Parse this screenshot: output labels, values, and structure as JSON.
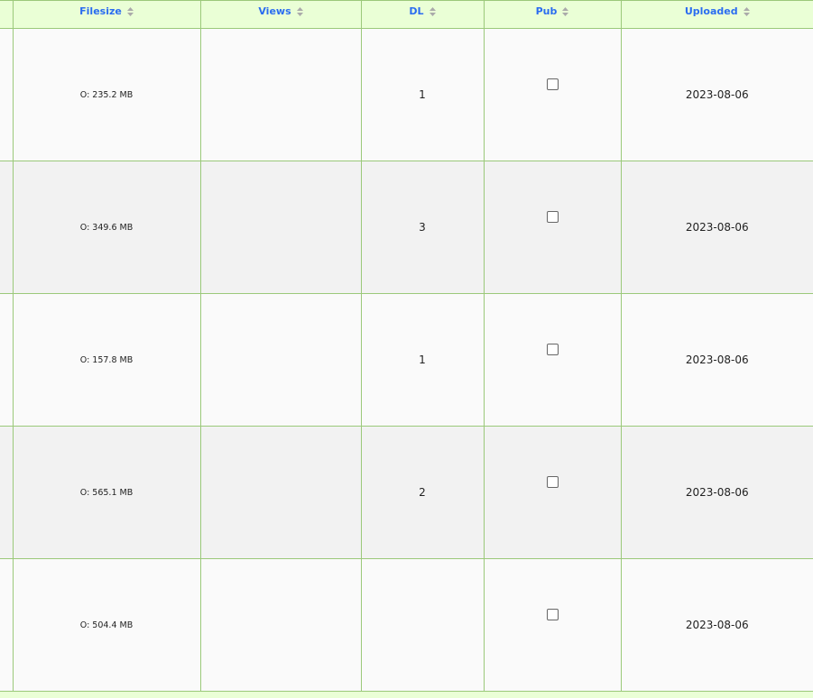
{
  "columns": [
    "Filesize",
    "Views",
    "DL",
    "Pub",
    "Uploaded"
  ],
  "rows": [
    {
      "filesize": "O: 235.2 MB",
      "views": "",
      "dl": "1",
      "pub": false,
      "uploaded": "2023-08-06"
    },
    {
      "filesize": "O: 349.6 MB",
      "views": "",
      "dl": "3",
      "pub": false,
      "uploaded": "2023-08-06"
    },
    {
      "filesize": "O: 157.8 MB",
      "views": "",
      "dl": "1",
      "pub": false,
      "uploaded": "2023-08-06"
    },
    {
      "filesize": "O: 565.1 MB",
      "views": "",
      "dl": "2",
      "pub": false,
      "uploaded": "2023-08-06"
    },
    {
      "filesize": "O: 504.4 MB",
      "views": "",
      "dl": "",
      "pub": false,
      "uploaded": "2023-08-06"
    }
  ],
  "colors": {
    "header_bg": "#eaffd6",
    "header_text": "#2a6cf0",
    "border": "#9bc97a"
  }
}
